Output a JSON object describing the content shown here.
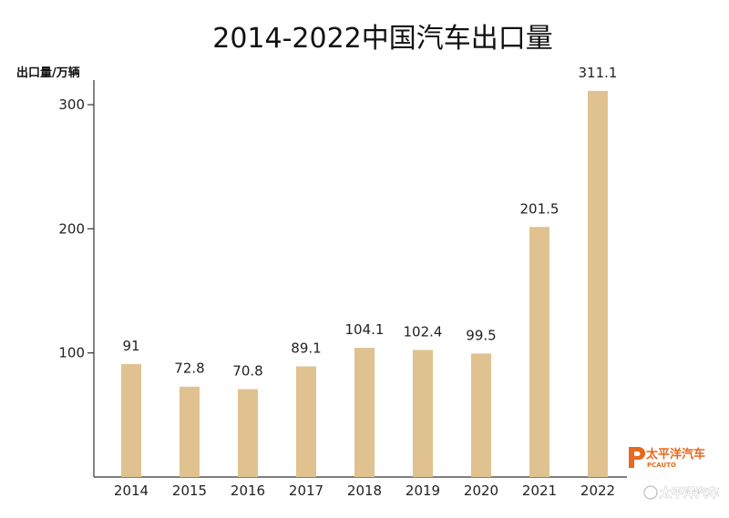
{
  "chart_data": {
    "type": "bar",
    "title": "2014-2022中国汽车出口量",
    "ylabel": "出口量/万辆",
    "xlabel": "",
    "categories": [
      "2014",
      "2015",
      "2016",
      "2017",
      "2018",
      "2019",
      "2020",
      "2021",
      "2022"
    ],
    "values": [
      91,
      72.8,
      70.8,
      89.1,
      104.1,
      102.4,
      99.5,
      201.5,
      311.1
    ],
    "value_labels": [
      "91",
      "72.8",
      "70.8",
      "89.1",
      "104.1",
      "102.4",
      "99.5",
      "201.5",
      "311.1"
    ],
    "yticks": [
      100,
      200,
      300
    ],
    "ylim": [
      0,
      330
    ],
    "grid": false,
    "legend": "none",
    "bar_color": "#dfc28f"
  },
  "logo": {
    "main": "太平洋汽车",
    "sub": "PCAUTO"
  },
  "watermark": {
    "text": "太平洋汽车"
  }
}
